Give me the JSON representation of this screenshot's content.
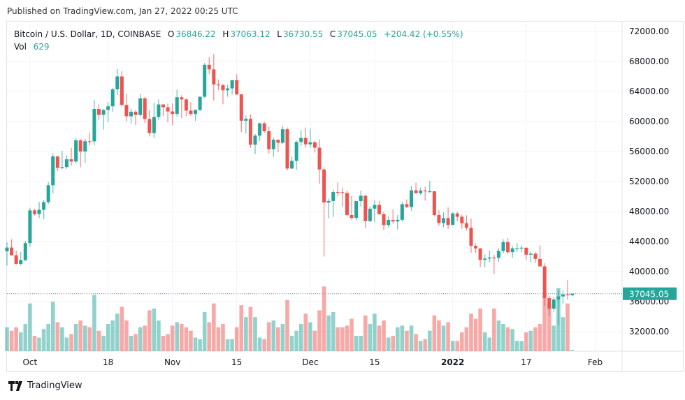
{
  "header": {
    "published": "Published on TradingView.com, Jan 27, 2022 00:25 UTC"
  },
  "legend": {
    "symbol": "Bitcoin / U.S. Dollar, 1D, COINBASE",
    "o_label": "O",
    "open": "36846.22",
    "h_label": "H",
    "high": "37063.12",
    "l_label": "L",
    "low": "36730.55",
    "c_label": "C",
    "close": "37045.05",
    "change": "+204.42 (+0.55%)",
    "vol_label": "Vol",
    "vol": "629"
  },
  "footer": {
    "brand": "TradingView",
    "logo_icon": "tradingview-logo-icon"
  },
  "colors": {
    "up": "#26a69a",
    "down": "#ef5350",
    "grid": "#f0f3fa",
    "last_price": "#26a69a"
  },
  "chart_data": {
    "type": "candlestick",
    "title": "Bitcoin / U.S. Dollar, 1D, COINBASE",
    "ylim": [
      30000,
      73000
    ],
    "grid": true,
    "y_ticks": [
      "72000.00",
      "68000.00",
      "64000.00",
      "60000.00",
      "56000.00",
      "52000.00",
      "48000.00",
      "44000.00",
      "40000.00",
      "36000.00",
      "32000.00"
    ],
    "x_ticks": [
      {
        "label": "Oct",
        "date": "2021-10-01"
      },
      {
        "label": "18",
        "date": "2021-10-18"
      },
      {
        "label": "Nov",
        "date": "2021-11-01"
      },
      {
        "label": "15",
        "date": "2021-11-15"
      },
      {
        "label": "Dec",
        "date": "2021-12-01"
      },
      {
        "label": "15",
        "date": "2021-12-15"
      },
      {
        "label": "2022",
        "date": "2022-01-01",
        "bold": true
      },
      {
        "label": "17",
        "date": "2022-01-17"
      },
      {
        "label": "Feb",
        "date": "2022-02-01"
      }
    ],
    "last_price_label": "37045.05",
    "columns": [
      "date",
      "open",
      "high",
      "low",
      "close",
      "volume"
    ],
    "candles": [
      [
        "2021-09-26",
        42700,
        43900,
        40800,
        43200,
        14000
      ],
      [
        "2021-09-27",
        43200,
        44300,
        42100,
        42170,
        12000
      ],
      [
        "2021-09-28",
        42170,
        42800,
        40900,
        41030,
        14000
      ],
      [
        "2021-09-29",
        41030,
        42600,
        40800,
        41520,
        11000
      ],
      [
        "2021-09-30",
        41520,
        44100,
        41400,
        43790,
        16000
      ],
      [
        "2021-10-01",
        43790,
        48500,
        43300,
        48150,
        28000
      ],
      [
        "2021-10-02",
        48150,
        48350,
        47450,
        47660,
        9000
      ],
      [
        "2021-10-03",
        47660,
        49300,
        47100,
        48230,
        8000
      ],
      [
        "2021-10-04",
        48230,
        49500,
        46950,
        49250,
        13000
      ],
      [
        "2021-10-05",
        49250,
        51900,
        49050,
        51500,
        16000
      ],
      [
        "2021-10-06",
        51500,
        55750,
        50400,
        55340,
        29000
      ],
      [
        "2021-10-07",
        55340,
        55400,
        53400,
        53800,
        17000
      ],
      [
        "2021-10-08",
        53800,
        56100,
        53650,
        53930,
        14000
      ],
      [
        "2021-10-09",
        53930,
        55500,
        53700,
        54960,
        8000
      ],
      [
        "2021-10-10",
        54960,
        56500,
        54100,
        54660,
        10000
      ],
      [
        "2021-10-11",
        54660,
        57800,
        54500,
        57480,
        16000
      ],
      [
        "2021-10-12",
        57480,
        57700,
        53900,
        56000,
        18000
      ],
      [
        "2021-10-13",
        56000,
        57700,
        54500,
        57370,
        15000
      ],
      [
        "2021-10-14",
        57370,
        58500,
        56800,
        57350,
        14000
      ],
      [
        "2021-10-15",
        57350,
        62900,
        56850,
        61670,
        33000
      ],
      [
        "2021-10-16",
        61670,
        62300,
        60200,
        60880,
        12000
      ],
      [
        "2021-10-17",
        60880,
        61700,
        58900,
        61530,
        9000
      ],
      [
        "2021-10-18",
        61530,
        62600,
        59900,
        62020,
        16000
      ],
      [
        "2021-10-19",
        62020,
        64500,
        61300,
        64280,
        18000
      ],
      [
        "2021-10-20",
        64280,
        67000,
        63500,
        66000,
        22000
      ],
      [
        "2021-10-21",
        66000,
        66700,
        62000,
        62210,
        26000
      ],
      [
        "2021-10-22",
        62210,
        63700,
        60000,
        60690,
        18000
      ],
      [
        "2021-10-23",
        60690,
        61700,
        59700,
        61300,
        9000
      ],
      [
        "2021-10-24",
        61300,
        61500,
        59500,
        60860,
        10000
      ],
      [
        "2021-10-25",
        60860,
        63700,
        60700,
        63080,
        14000
      ],
      [
        "2021-10-26",
        63080,
        63300,
        59800,
        60330,
        15000
      ],
      [
        "2021-10-27",
        60330,
        61500,
        58000,
        58450,
        24000
      ],
      [
        "2021-10-28",
        58450,
        62500,
        57800,
        60590,
        25000
      ],
      [
        "2021-10-29",
        60590,
        62950,
        60200,
        62270,
        18000
      ],
      [
        "2021-10-30",
        62270,
        62300,
        60700,
        61890,
        9000
      ],
      [
        "2021-10-31",
        61890,
        62400,
        59900,
        61340,
        10000
      ],
      [
        "2021-11-01",
        61340,
        62400,
        59500,
        61010,
        15000
      ],
      [
        "2021-11-02",
        61010,
        64250,
        60650,
        63230,
        17000
      ],
      [
        "2021-11-03",
        63230,
        63500,
        60450,
        62940,
        16000
      ],
      [
        "2021-11-04",
        62940,
        63100,
        60700,
        61450,
        14000
      ],
      [
        "2021-11-05",
        61450,
        62600,
        60750,
        61000,
        12000
      ],
      [
        "2021-11-06",
        61000,
        61600,
        60100,
        61530,
        8000
      ],
      [
        "2021-11-07",
        61530,
        63300,
        61350,
        63300,
        7000
      ],
      [
        "2021-11-08",
        63300,
        67800,
        63100,
        67550,
        23000
      ],
      [
        "2021-11-09",
        67550,
        68550,
        66300,
        66940,
        17000
      ],
      [
        "2021-11-10",
        66940,
        69000,
        62800,
        64930,
        28000
      ],
      [
        "2021-11-11",
        64930,
        65600,
        64150,
        64830,
        14000
      ],
      [
        "2021-11-12",
        64830,
        65000,
        62300,
        64160,
        16000
      ],
      [
        "2021-11-13",
        64160,
        64900,
        63300,
        64410,
        7000
      ],
      [
        "2021-11-14",
        64410,
        65500,
        63600,
        65500,
        7000
      ],
      [
        "2021-11-15",
        65500,
        66300,
        63500,
        63610,
        14000
      ],
      [
        "2021-11-16",
        63610,
        63610,
        58600,
        60100,
        27000
      ],
      [
        "2021-11-17",
        60100,
        60800,
        58400,
        60350,
        20000
      ],
      [
        "2021-11-18",
        60350,
        60950,
        56500,
        56900,
        26000
      ],
      [
        "2021-11-19",
        56900,
        58350,
        55650,
        58110,
        20000
      ],
      [
        "2021-11-20",
        58110,
        59850,
        57400,
        59750,
        8000
      ],
      [
        "2021-11-21",
        59750,
        60000,
        58500,
        58700,
        7000
      ],
      [
        "2021-11-22",
        58700,
        59300,
        55700,
        56300,
        17000
      ],
      [
        "2021-11-23",
        56300,
        57850,
        55300,
        57560,
        18000
      ],
      [
        "2021-11-24",
        57560,
        57600,
        55900,
        57160,
        14000
      ],
      [
        "2021-11-25",
        57160,
        59400,
        57000,
        58960,
        16000
      ],
      [
        "2021-11-26",
        58960,
        59200,
        53500,
        53730,
        30000
      ],
      [
        "2021-11-27",
        53730,
        55300,
        53650,
        54740,
        9000
      ],
      [
        "2021-11-28",
        54740,
        57450,
        53550,
        57270,
        12000
      ],
      [
        "2021-11-29",
        57270,
        58850,
        56750,
        57800,
        16000
      ],
      [
        "2021-11-30",
        57800,
        59200,
        56500,
        56950,
        22000
      ],
      [
        "2021-12-01",
        56950,
        59050,
        56500,
        57220,
        17000
      ],
      [
        "2021-12-02",
        57220,
        57400,
        55850,
        56510,
        12000
      ],
      [
        "2021-12-03",
        56510,
        57600,
        51700,
        53600,
        24000
      ],
      [
        "2021-12-04",
        53600,
        53900,
        42000,
        49200,
        38000
      ],
      [
        "2021-12-05",
        49200,
        49700,
        47100,
        49400,
        21000
      ],
      [
        "2021-12-06",
        49400,
        50900,
        47300,
        50600,
        23000
      ],
      [
        "2021-12-07",
        50600,
        51900,
        50050,
        50580,
        14000
      ],
      [
        "2021-12-08",
        50580,
        51200,
        48650,
        50470,
        14000
      ],
      [
        "2021-12-09",
        50470,
        50800,
        47350,
        47540,
        15000
      ],
      [
        "2021-12-10",
        47540,
        50050,
        46900,
        47140,
        19000
      ],
      [
        "2021-12-11",
        47140,
        49450,
        46780,
        49390,
        9000
      ],
      [
        "2021-12-12",
        49390,
        50800,
        48650,
        50100,
        9000
      ],
      [
        "2021-12-13",
        50100,
        50200,
        45800,
        46720,
        21000
      ],
      [
        "2021-12-14",
        46720,
        48700,
        46600,
        48380,
        16000
      ],
      [
        "2021-12-15",
        48380,
        49500,
        46600,
        48880,
        22000
      ],
      [
        "2021-12-16",
        48880,
        49450,
        47550,
        47650,
        15000
      ],
      [
        "2021-12-17",
        47650,
        47950,
        45500,
        46200,
        18000
      ],
      [
        "2021-12-18",
        46200,
        47350,
        45900,
        46880,
        8000
      ],
      [
        "2021-12-19",
        46880,
        48300,
        46400,
        46680,
        9000
      ],
      [
        "2021-12-20",
        46680,
        47550,
        45600,
        46900,
        14000
      ],
      [
        "2021-12-21",
        46900,
        49300,
        46650,
        48980,
        15000
      ],
      [
        "2021-12-22",
        48980,
        49600,
        48450,
        48600,
        12000
      ],
      [
        "2021-12-23",
        48600,
        51400,
        48100,
        50820,
        15000
      ],
      [
        "2021-12-24",
        50820,
        51850,
        50450,
        50430,
        10000
      ],
      [
        "2021-12-25",
        50430,
        51200,
        50250,
        50800,
        6000
      ],
      [
        "2021-12-26",
        50800,
        51300,
        49450,
        50700,
        7000
      ],
      [
        "2021-12-27",
        50700,
        52100,
        50500,
        50700,
        12000
      ],
      [
        "2021-12-28",
        50700,
        50700,
        47350,
        47540,
        21000
      ],
      [
        "2021-12-29",
        47540,
        48150,
        46100,
        46470,
        18000
      ],
      [
        "2021-12-30",
        46470,
        47900,
        45900,
        47120,
        15000
      ],
      [
        "2021-12-31",
        47120,
        48550,
        45700,
        46210,
        17000
      ],
      [
        "2022-01-01",
        46210,
        47900,
        46200,
        47740,
        6000
      ],
      [
        "2022-01-02",
        47740,
        47950,
        46700,
        47300,
        6000
      ],
      [
        "2022-01-03",
        47300,
        47550,
        45700,
        46440,
        11000
      ],
      [
        "2022-01-04",
        46440,
        47500,
        45500,
        45830,
        14000
      ],
      [
        "2022-01-05",
        45830,
        47050,
        42500,
        43430,
        22000
      ],
      [
        "2022-01-06",
        43430,
        43750,
        42450,
        43080,
        19000
      ],
      [
        "2022-01-07",
        43080,
        43150,
        40600,
        41560,
        25000
      ],
      [
        "2022-01-08",
        41560,
        42300,
        40550,
        41730,
        11000
      ],
      [
        "2022-01-09",
        41730,
        42800,
        41250,
        41870,
        8000
      ],
      [
        "2022-01-10",
        41870,
        42250,
        39650,
        41830,
        25000
      ],
      [
        "2022-01-11",
        41830,
        43100,
        41300,
        42740,
        18000
      ],
      [
        "2022-01-12",
        42740,
        44300,
        42450,
        43920,
        16000
      ],
      [
        "2022-01-13",
        43920,
        44450,
        42300,
        42590,
        14000
      ],
      [
        "2022-01-14",
        42590,
        43400,
        41850,
        43090,
        13000
      ],
      [
        "2022-01-15",
        43090,
        43800,
        42600,
        43100,
        6000
      ],
      [
        "2022-01-16",
        43100,
        43450,
        42600,
        43180,
        6000
      ],
      [
        "2022-01-17",
        43180,
        43200,
        41550,
        42250,
        11000
      ],
      [
        "2022-01-18",
        42250,
        42700,
        41250,
        42380,
        12000
      ],
      [
        "2022-01-19",
        42380,
        42600,
        41150,
        41690,
        14000
      ],
      [
        "2022-01-20",
        41690,
        43500,
        40600,
        40700,
        16000
      ],
      [
        "2022-01-21",
        40700,
        41100,
        35450,
        36460,
        34000
      ],
      [
        "2022-01-22",
        36460,
        36800,
        34050,
        35050,
        28000
      ],
      [
        "2022-01-23",
        35050,
        36600,
        34650,
        36280,
        15000
      ],
      [
        "2022-01-24",
        36280,
        37550,
        32950,
        36680,
        37000
      ],
      [
        "2022-01-25",
        36680,
        37500,
        35700,
        36960,
        20000
      ],
      [
        "2022-01-26",
        36960,
        38900,
        36250,
        36840,
        28000
      ],
      [
        "2022-01-27",
        36846.22,
        37063.12,
        36730.55,
        37045.05,
        629
      ]
    ]
  }
}
